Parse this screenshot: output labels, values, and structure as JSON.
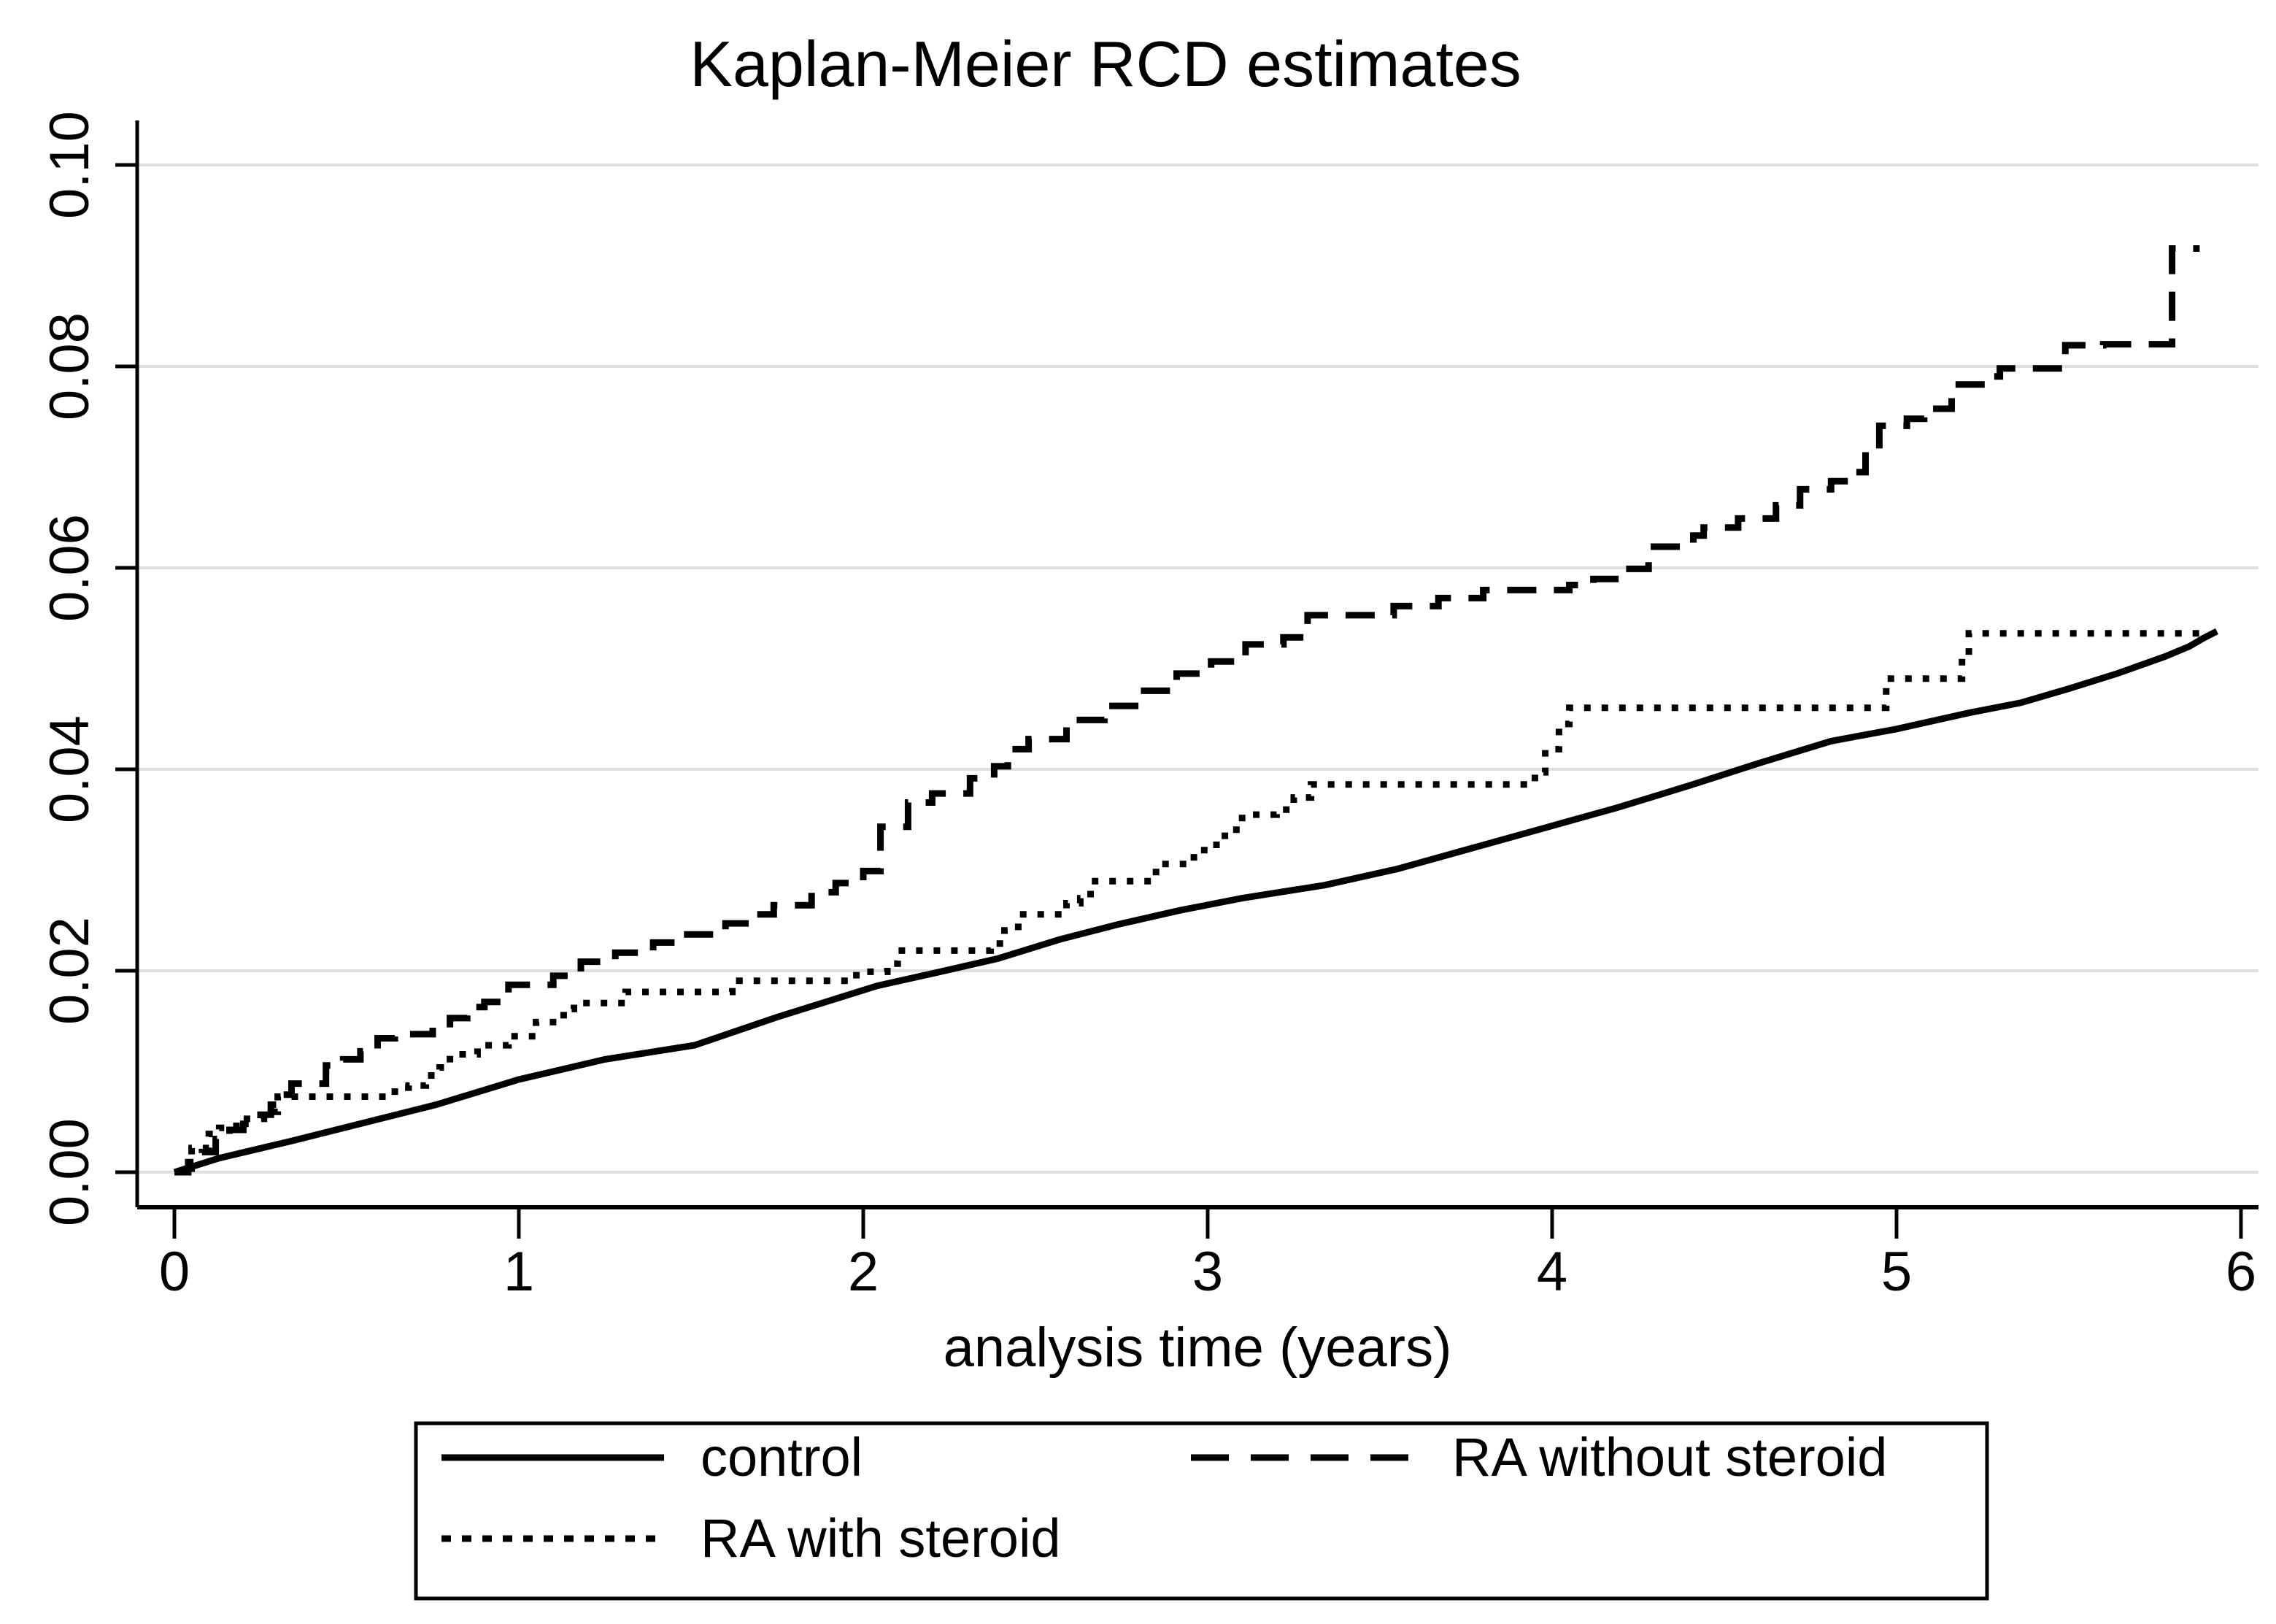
{
  "title": "Kaplan-Meier RCD estimates",
  "colors": {
    "foreground": "#000000",
    "grid": "#e0e0e0",
    "background": "#ffffff"
  },
  "legend": {
    "items": [
      {
        "label": "control",
        "style": "solid"
      },
      {
        "label": "RA without steroid",
        "style": "dashed"
      },
      {
        "label": "RA with steroid",
        "style": "dotted"
      }
    ]
  },
  "chart_data": {
    "type": "line",
    "title": "Kaplan-Meier RCD estimates",
    "xlabel": "analysis time (years)",
    "ylabel": "",
    "xlim": [
      0,
      6.07
    ],
    "ylim": [
      0,
      0.104
    ],
    "xticks": [
      0,
      1,
      2,
      3,
      4,
      5,
      6
    ],
    "ytick_values": [
      0.0,
      0.02,
      0.04,
      0.06,
      0.08,
      0.1
    ],
    "ytick_labels": [
      "0.00",
      "0.02",
      "0.04",
      "0.06",
      "0.08",
      "0.10"
    ],
    "grid": "horizontal",
    "legend_position": "bottom",
    "series": [
      {
        "name": "control",
        "style": "solid",
        "step": false,
        "points": [
          [
            0,
            0
          ],
          [
            0.13,
            0.0014
          ],
          [
            0.34,
            0.0031
          ],
          [
            0.55,
            0.0049
          ],
          [
            0.76,
            0.0067
          ],
          [
            1.0,
            0.0092
          ],
          [
            1.25,
            0.0112
          ],
          [
            1.51,
            0.0126
          ],
          [
            1.75,
            0.0154
          ],
          [
            2.04,
            0.0185
          ],
          [
            2.21,
            0.0198
          ],
          [
            2.39,
            0.0212
          ],
          [
            2.57,
            0.0231
          ],
          [
            2.74,
            0.0246
          ],
          [
            2.92,
            0.026
          ],
          [
            3.1,
            0.0272
          ],
          [
            3.34,
            0.0285
          ],
          [
            3.55,
            0.0301
          ],
          [
            3.76,
            0.0321
          ],
          [
            3.97,
            0.0341
          ],
          [
            4.19,
            0.0362
          ],
          [
            4.4,
            0.0384
          ],
          [
            4.6,
            0.0406
          ],
          [
            4.81,
            0.0428
          ],
          [
            5.0,
            0.044
          ],
          [
            5.21,
            0.0456
          ],
          [
            5.36,
            0.0466
          ],
          [
            5.5,
            0.048
          ],
          [
            5.64,
            0.0495
          ],
          [
            5.78,
            0.0512
          ],
          [
            5.85,
            0.0522
          ],
          [
            5.89,
            0.053
          ],
          [
            5.93,
            0.0537
          ]
        ]
      },
      {
        "name": "RA without steroid",
        "style": "dashed",
        "step": true,
        "points": [
          [
            0,
            0
          ],
          [
            0.04,
            0.001
          ],
          [
            0.08,
            0.002
          ],
          [
            0.12,
            0.0033
          ],
          [
            0.16,
            0.0042
          ],
          [
            0.2,
            0.0048
          ],
          [
            0.25,
            0.0057
          ],
          [
            0.28,
            0.0067
          ],
          [
            0.31,
            0.0077
          ],
          [
            0.34,
            0.0088
          ],
          [
            0.44,
            0.0106
          ],
          [
            0.49,
            0.0112
          ],
          [
            0.54,
            0.012
          ],
          [
            0.59,
            0.0133
          ],
          [
            0.64,
            0.0137
          ],
          [
            0.75,
            0.0147
          ],
          [
            0.8,
            0.0153
          ],
          [
            0.85,
            0.0164
          ],
          [
            0.9,
            0.0169
          ],
          [
            0.97,
            0.0186
          ],
          [
            1.1,
            0.0195
          ],
          [
            1.18,
            0.0209
          ],
          [
            1.28,
            0.0218
          ],
          [
            1.39,
            0.0228
          ],
          [
            1.46,
            0.0236
          ],
          [
            1.6,
            0.0247
          ],
          [
            1.67,
            0.0256
          ],
          [
            1.74,
            0.0265
          ],
          [
            1.85,
            0.0278
          ],
          [
            1.92,
            0.0287
          ],
          [
            2.0,
            0.0299
          ],
          [
            2.05,
            0.0343
          ],
          [
            2.13,
            0.0367
          ],
          [
            2.2,
            0.0376
          ],
          [
            2.31,
            0.0391
          ],
          [
            2.38,
            0.0403
          ],
          [
            2.42,
            0.042
          ],
          [
            2.48,
            0.043
          ],
          [
            2.59,
            0.0449
          ],
          [
            2.7,
            0.0463
          ],
          [
            2.8,
            0.0478
          ],
          [
            2.91,
            0.0495
          ],
          [
            3.01,
            0.0507
          ],
          [
            3.11,
            0.0524
          ],
          [
            3.22,
            0.0531
          ],
          [
            3.29,
            0.0553
          ],
          [
            3.54,
            0.0562
          ],
          [
            3.67,
            0.057
          ],
          [
            3.8,
            0.0578
          ],
          [
            4.05,
            0.0583
          ],
          [
            4.12,
            0.0589
          ],
          [
            4.2,
            0.0599
          ],
          [
            4.28,
            0.0621
          ],
          [
            4.41,
            0.0632
          ],
          [
            4.44,
            0.064
          ],
          [
            4.54,
            0.0649
          ],
          [
            4.65,
            0.0662
          ],
          [
            4.72,
            0.0678
          ],
          [
            4.81,
            0.0686
          ],
          [
            4.88,
            0.0695
          ],
          [
            4.91,
            0.0717
          ],
          [
            4.95,
            0.0741
          ],
          [
            5.03,
            0.0748
          ],
          [
            5.08,
            0.0758
          ],
          [
            5.16,
            0.0782
          ],
          [
            5.26,
            0.079
          ],
          [
            5.3,
            0.0798
          ],
          [
            5.49,
            0.0821
          ],
          [
            5.6,
            0.0822
          ],
          [
            5.8,
            0.0917
          ],
          [
            5.88,
            0.0917
          ]
        ]
      },
      {
        "name": "RA with steroid",
        "style": "dotted",
        "step": true,
        "points": [
          [
            0,
            0
          ],
          [
            0.05,
            0.0024
          ],
          [
            0.1,
            0.0038
          ],
          [
            0.13,
            0.0044
          ],
          [
            0.18,
            0.0053
          ],
          [
            0.26,
            0.006
          ],
          [
            0.3,
            0.0075
          ],
          [
            0.64,
            0.0084
          ],
          [
            0.68,
            0.0086
          ],
          [
            0.73,
            0.0096
          ],
          [
            0.77,
            0.0104
          ],
          [
            0.8,
            0.0117
          ],
          [
            0.88,
            0.0126
          ],
          [
            0.97,
            0.0135
          ],
          [
            1.05,
            0.0149
          ],
          [
            1.13,
            0.0162
          ],
          [
            1.16,
            0.0168
          ],
          [
            1.31,
            0.0179
          ],
          [
            1.62,
            0.0186
          ],
          [
            1.64,
            0.019
          ],
          [
            1.98,
            0.0199
          ],
          [
            2.07,
            0.0207
          ],
          [
            2.1,
            0.022
          ],
          [
            2.37,
            0.0227
          ],
          [
            2.41,
            0.024
          ],
          [
            2.45,
            0.0256
          ],
          [
            2.59,
            0.0267
          ],
          [
            2.63,
            0.0272
          ],
          [
            2.66,
            0.0289
          ],
          [
            2.84,
            0.0294
          ],
          [
            2.85,
            0.0306
          ],
          [
            2.96,
            0.0316
          ],
          [
            2.99,
            0.0325
          ],
          [
            3.05,
            0.034
          ],
          [
            3.1,
            0.0355
          ],
          [
            3.2,
            0.036
          ],
          [
            3.25,
            0.0372
          ],
          [
            3.3,
            0.0385
          ],
          [
            3.95,
            0.0397
          ],
          [
            3.98,
            0.042
          ],
          [
            4.02,
            0.0445
          ],
          [
            4.05,
            0.0461
          ],
          [
            4.97,
            0.049
          ],
          [
            5.19,
            0.0512
          ],
          [
            5.21,
            0.0535
          ],
          [
            5.9,
            0.0535
          ]
        ]
      }
    ]
  }
}
